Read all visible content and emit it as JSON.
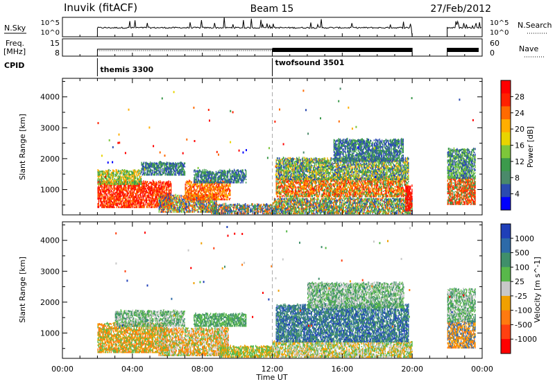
{
  "header": {
    "station": "Inuvik (fitACF)",
    "beam": "Beam 15",
    "date": "27/Feb/2012"
  },
  "noise_panel": {
    "left_label": "N.Sky",
    "left_ticks": [
      "10^5",
      "10^0"
    ],
    "right_label": "N.Search",
    "right_ticks": [
      "10^5",
      "10^0"
    ]
  },
  "freq_panel": {
    "left_label_line1": "Freq.",
    "left_label_line2": "[MHz]",
    "left_ticks": [
      "15",
      "8"
    ],
    "right_label": "Nave",
    "right_ticks": [
      "60",
      "0"
    ]
  },
  "cpid": {
    "label": "CPID",
    "segments": [
      {
        "start_hour": 2.0,
        "name": "themis 3300"
      },
      {
        "start_hour": 12.0,
        "name": "twofsound 3501"
      }
    ]
  },
  "x_axis": {
    "label": "Time UT",
    "ticks": [
      "00:00",
      "04:00",
      "08:00",
      "12:00",
      "16:00",
      "20:00",
      "00:00"
    ],
    "range_hours": [
      0,
      24
    ]
  },
  "chart_data": [
    {
      "type": "heatmap",
      "name": "power",
      "ylabel": "Slant Range [km]",
      "yticks": [
        1000,
        2000,
        3000,
        4000
      ],
      "ylim": [
        180,
        4600
      ],
      "colorbar": {
        "label": "Power [dB]",
        "ticks": [
          "28",
          "24",
          "20",
          "16",
          "12",
          "8",
          "4"
        ],
        "colors": [
          "#ff0000",
          "#ff2000",
          "#ff6a00",
          "#ffae00",
          "#e8d400",
          "#7dc63a",
          "#3c9a4c",
          "#4a8a6a",
          "#2b4bb0",
          "#0000ff"
        ]
      },
      "regions": [
        {
          "t0": 2.0,
          "t1": 6.2,
          "r0": 400,
          "r1": 1250,
          "colors": [
            "#ff0000",
            "#ff2000",
            "#ff6a00"
          ]
        },
        {
          "t0": 5.5,
          "t1": 8.8,
          "r0": 250,
          "r1": 800,
          "colors": [
            "#ff6a00",
            "#7dc63a",
            "#2b4bb0"
          ]
        },
        {
          "t0": 7.0,
          "t1": 9.6,
          "r0": 650,
          "r1": 1250,
          "colors": [
            "#ff2000",
            "#ff6a00",
            "#ffae00"
          ]
        },
        {
          "t0": 2.0,
          "t1": 4.5,
          "r0": 1150,
          "r1": 1600,
          "colors": [
            "#7dc63a",
            "#ffae00",
            "#3c9a4c"
          ]
        },
        {
          "t0": 4.5,
          "t1": 7.0,
          "r0": 1450,
          "r1": 1850,
          "colors": [
            "#2b4bb0",
            "#3c9a4c"
          ]
        },
        {
          "t0": 7.5,
          "t1": 10.5,
          "r0": 1200,
          "r1": 1600,
          "colors": [
            "#3c9a4c",
            "#2b4bb0"
          ]
        },
        {
          "t0": 8.5,
          "t1": 12.0,
          "r0": 200,
          "r1": 500,
          "colors": [
            "#2b4bb0",
            "#ff6a00",
            "#3c9a4c"
          ]
        },
        {
          "t0": 12.0,
          "t1": 20.0,
          "r0": 200,
          "r1": 700,
          "colors": [
            "#ff6a00",
            "#7dc63a",
            "#2b4bb0",
            "#3c9a4c"
          ]
        },
        {
          "t0": 12.2,
          "t1": 19.8,
          "r0": 750,
          "r1": 1350,
          "colors": [
            "#ff2000",
            "#ff6a00",
            "#ffae00",
            "#3c9a4c"
          ]
        },
        {
          "t0": 12.2,
          "t1": 19.8,
          "r0": 1300,
          "r1": 2000,
          "colors": [
            "#3c9a4c",
            "#2b4bb0",
            "#ffae00",
            "#7dc63a"
          ]
        },
        {
          "t0": 15.5,
          "t1": 19.5,
          "r0": 1900,
          "r1": 2600,
          "colors": [
            "#2b4bb0",
            "#3c9a4c"
          ]
        },
        {
          "t0": 19.6,
          "t1": 20.0,
          "r0": 300,
          "r1": 1100,
          "colors": [
            "#ff0000",
            "#ff2000"
          ]
        },
        {
          "t0": 22.0,
          "t1": 23.6,
          "r0": 500,
          "r1": 1350,
          "colors": [
            "#ff2000",
            "#ff6a00",
            "#3c9a4c"
          ]
        },
        {
          "t0": 22.0,
          "t1": 23.6,
          "r0": 1350,
          "r1": 2300,
          "colors": [
            "#3c9a4c",
            "#7dc63a",
            "#2b4bb0"
          ]
        }
      ]
    },
    {
      "type": "heatmap",
      "name": "velocity",
      "ylabel": "Slant Range [km]",
      "yticks": [
        1000,
        2000,
        3000,
        4000
      ],
      "ylim": [
        180,
        4600
      ],
      "colorbar": {
        "label": "Velocity [m s^-1]",
        "ticks": [
          "1000",
          "500",
          "100",
          "25",
          "-25",
          "-100",
          "-500",
          "-1000"
        ],
        "colors": [
          "#1f3fb8",
          "#2d6aa8",
          "#3f8f6a",
          "#58b84a",
          "#c8c8c8",
          "#f0a000",
          "#ff7a10",
          "#ff4010",
          "#ff0000"
        ]
      },
      "regions": [
        {
          "t0": 2.0,
          "t1": 6.0,
          "r0": 350,
          "r1": 1300,
          "colors": [
            "#ff7a10",
            "#f0a000",
            "#58b84a"
          ]
        },
        {
          "t0": 5.5,
          "t1": 9.5,
          "r0": 250,
          "r1": 1150,
          "colors": [
            "#ff7a10",
            "#c8c8c8",
            "#58b84a",
            "#f0a000"
          ]
        },
        {
          "t0": 3.0,
          "t1": 7.0,
          "r0": 1200,
          "r1": 1700,
          "colors": [
            "#c8c8c8",
            "#3f8f6a",
            "#58b84a"
          ]
        },
        {
          "t0": 7.5,
          "t1": 10.5,
          "r0": 1200,
          "r1": 1600,
          "colors": [
            "#3f8f6a",
            "#58b84a"
          ]
        },
        {
          "t0": 9.0,
          "t1": 12.0,
          "r0": 200,
          "r1": 550,
          "colors": [
            "#58b84a",
            "#f0a000"
          ]
        },
        {
          "t0": 12.0,
          "t1": 20.0,
          "r0": 200,
          "r1": 700,
          "colors": [
            "#58b84a",
            "#f0a000",
            "#c8c8c8"
          ]
        },
        {
          "t0": 12.2,
          "t1": 19.8,
          "r0": 700,
          "r1": 1900,
          "colors": [
            "#3f8f6a",
            "#2d6aa8",
            "#1f3fb8",
            "#3f8f6a"
          ]
        },
        {
          "t0": 14.0,
          "t1": 19.5,
          "r0": 1800,
          "r1": 2600,
          "colors": [
            "#c8c8c8",
            "#58b84a",
            "#3f8f6a"
          ]
        },
        {
          "t0": 22.0,
          "t1": 23.6,
          "r0": 500,
          "r1": 1350,
          "colors": [
            "#ff7a10",
            "#f0a000",
            "#2d6aa8"
          ]
        },
        {
          "t0": 22.0,
          "t1": 23.6,
          "r0": 1350,
          "r1": 2400,
          "colors": [
            "#c8c8c8",
            "#58b84a",
            "#3f8f6a"
          ]
        }
      ]
    }
  ]
}
